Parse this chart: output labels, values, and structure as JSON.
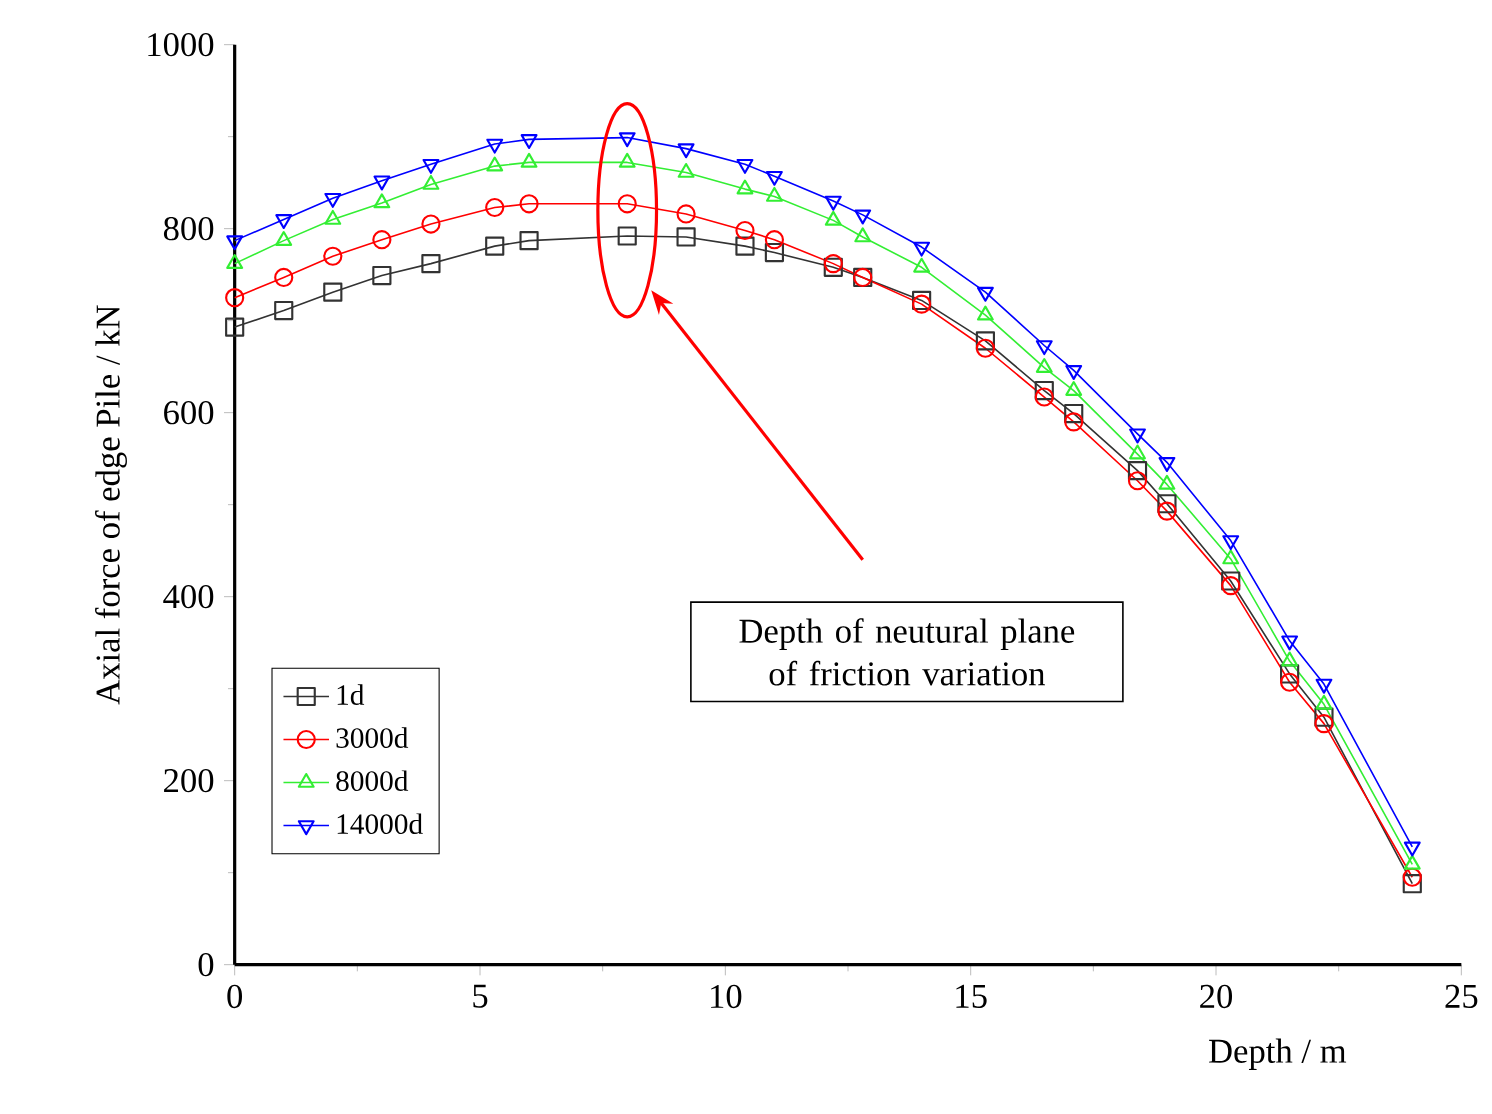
{
  "chart_data": {
    "type": "line",
    "xlabel": "Depth / m",
    "ylabel": "Axial force of edge Pile / kN",
    "x": [
      0,
      1,
      2,
      3,
      4,
      5.3,
      6,
      8,
      9.2,
      10.4,
      11,
      12.2,
      12.8,
      14,
      15.3,
      16.5,
      17.1,
      18.4,
      19,
      20.3,
      21.5,
      22.2,
      24
    ],
    "series": [
      {
        "name": "1d",
        "color": "#333333",
        "marker": "square",
        "values": [
          693,
          711,
          731,
          749,
          762,
          781,
          787,
          792,
          791,
          781,
          774,
          758,
          747,
          722,
          678,
          624,
          599,
          537,
          501,
          417,
          316,
          269,
          88
        ]
      },
      {
        "name": "3000d",
        "color": "#ff0000",
        "marker": "circle",
        "values": [
          725,
          747,
          770,
          788,
          805,
          823,
          827,
          827,
          816,
          798,
          788,
          762,
          747,
          718,
          670,
          617,
          590,
          526,
          493,
          412,
          307,
          262,
          95
        ]
      },
      {
        "name": "8000d",
        "color": "#33ee33",
        "marker": "triangle",
        "values": [
          762,
          787,
          810,
          828,
          848,
          868,
          872,
          872,
          861,
          843,
          835,
          809,
          791,
          758,
          706,
          649,
          624,
          555,
          522,
          441,
          330,
          283,
          109
        ]
      },
      {
        "name": "14000d",
        "color": "#0000ff",
        "marker": "triangle",
        "values": [
          787,
          810,
          833,
          852,
          870,
          892,
          897,
          899,
          887,
          870,
          857,
          830,
          815,
          780,
          731,
          673,
          646,
          577,
          546,
          461,
          352,
          305,
          128
        ]
      }
    ],
    "xlim": [
      0,
      25
    ],
    "ylim": [
      0,
      1000
    ],
    "xticks": [
      0,
      5,
      10,
      15,
      20,
      25
    ],
    "yticks": [
      0,
      200,
      400,
      600,
      800,
      1000
    ],
    "legend": "bottom left",
    "grid": false,
    "annotations": [
      "Depth of neutural plane of friction variation"
    ]
  }
}
